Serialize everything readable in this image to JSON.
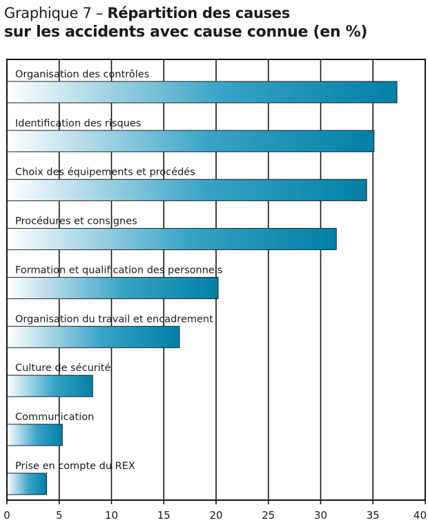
{
  "header": {
    "title_prefix": "Graphique 7 –",
    "title_bold_line1": "Répartition des causes",
    "title_line2": "sur les accidents avec cause connue (en %)"
  },
  "colors": {
    "bar_end": "#0080a6",
    "bar_mid": "#38a3c6",
    "bar_start": "#ffffff",
    "grid": "#111111"
  },
  "chart_data": {
    "type": "bar",
    "orientation": "horizontal",
    "title": "Graphique 7 – Répartition des causes sur les accidents avec cause connue (en %)",
    "categories": [
      "Organisation des contrôles",
      "Identification des risques",
      "Choix des équipements et procédés",
      "Procédures et consignes",
      "Formation et qualification des personnels",
      "Organisation du travail et encadrement",
      "Culture de sécurité",
      "Communication",
      "Prise en compte du REX"
    ],
    "values": [
      37.3,
      35.1,
      34.4,
      31.5,
      20.2,
      16.5,
      8.2,
      5.3,
      3.8
    ],
    "xlim": [
      0,
      40
    ],
    "x_ticks": [
      0,
      5,
      10,
      15,
      20,
      25,
      30,
      35,
      40
    ],
    "x_tick_labels": [
      "0",
      "5",
      "10",
      "15",
      "20",
      "25",
      "30",
      "35",
      "40"
    ],
    "xlabel": "",
    "ylabel": "",
    "grid": "vertical",
    "legend": "none"
  }
}
